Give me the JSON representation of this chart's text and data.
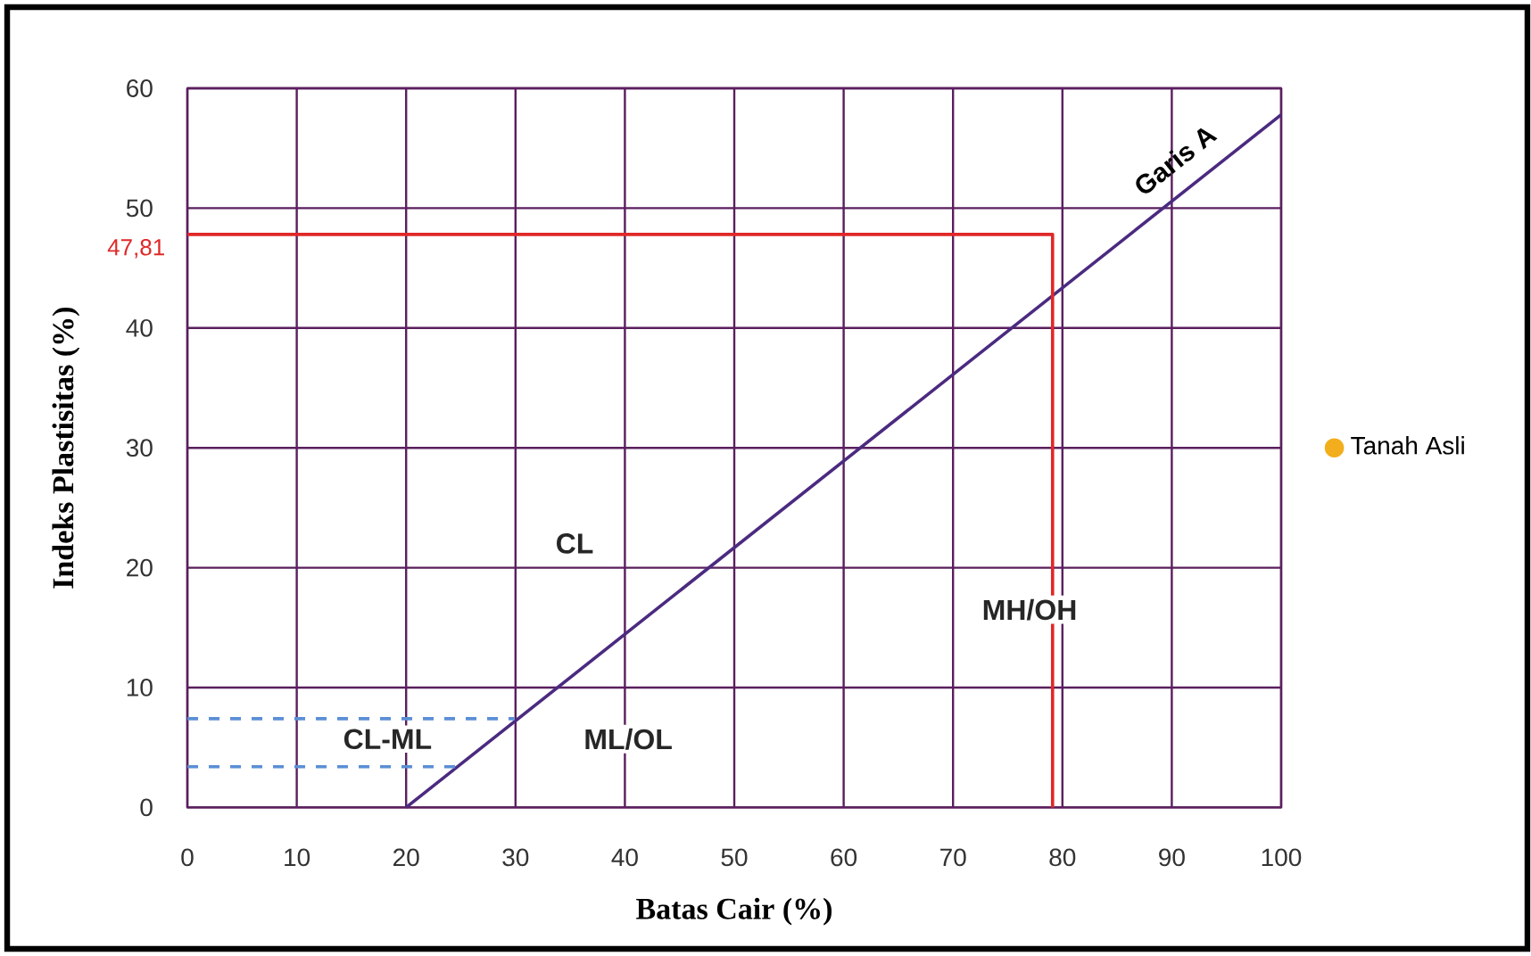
{
  "chart_data": {
    "type": "line",
    "xlabel": "Batas Cair (%)",
    "ylabel": "Indeks Plastisitas (%)",
    "xlim": [
      0,
      100
    ],
    "ylim": [
      0,
      60
    ],
    "xticks": [
      0,
      10,
      20,
      30,
      40,
      50,
      60,
      70,
      80,
      90,
      100
    ],
    "yticks": [
      0,
      10,
      20,
      30,
      40,
      50,
      60
    ],
    "grid": true,
    "legend": "right",
    "series": [
      {
        "name": "Garis A",
        "color": "#4b2a80",
        "x": [
          20,
          100
        ],
        "values": [
          0,
          57.8
        ]
      },
      {
        "color": "#e02828",
        "x": [
          0,
          79.1,
          79.1
        ],
        "values": [
          47.81,
          47.81,
          0
        ]
      },
      {
        "line_style": "dashed",
        "color": "#5b8fd6",
        "x": [
          0,
          29.9
        ],
        "values": [
          7.4,
          7.4
        ]
      },
      {
        "line_style": "dashed",
        "color": "#5b8fd6",
        "x": [
          0,
          24.7
        ],
        "values": [
          3.4,
          3.4
        ]
      },
      {
        "name": "Tanah Asli",
        "type": "scatter",
        "color": "#f2ae1c",
        "values": [
          null
        ]
      }
    ],
    "annotations": [
      {
        "text": "47,81",
        "x": 0,
        "y": 47.81
      },
      "CL",
      "CL-ML",
      "ML/OL",
      "MH/OH"
    ]
  }
}
